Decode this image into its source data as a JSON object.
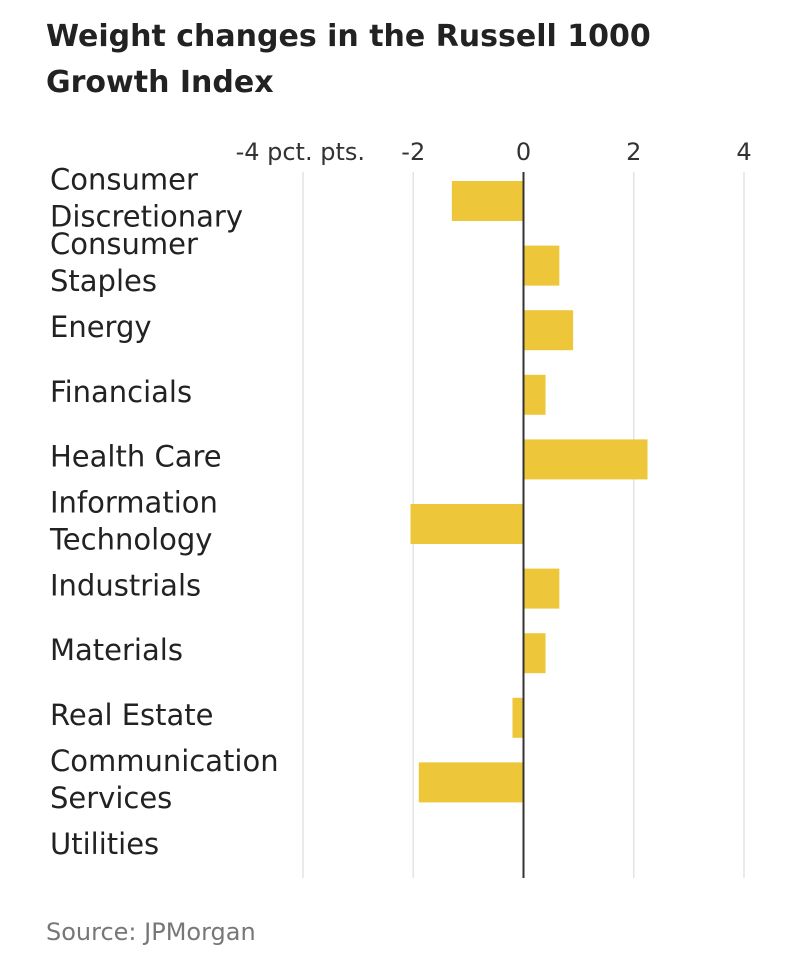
{
  "title": "Weight changes in the Russell 1000 Growth Index",
  "source": "Source: JPMorgan",
  "colors": {
    "bar": "#eec639",
    "grid": "#e3e3e3",
    "zero_line": "#333333",
    "text": "#222222",
    "tick_text": "#333333"
  },
  "chart_data": {
    "type": "bar",
    "orientation": "horizontal",
    "categories": [
      [
        "Consumer",
        "Discretionary"
      ],
      [
        "Consumer",
        "Staples"
      ],
      [
        "Energy"
      ],
      [
        "Financials"
      ],
      [
        "Health Care"
      ],
      [
        "Information",
        "Technology"
      ],
      [
        "Industrials"
      ],
      [
        "Materials"
      ],
      [
        "Real Estate"
      ],
      [
        "Communication",
        "Services"
      ],
      [
        "Utilities"
      ]
    ],
    "values": [
      -1.3,
      0.65,
      0.9,
      0.4,
      2.25,
      -2.05,
      0.65,
      0.4,
      -0.2,
      -1.9,
      0
    ],
    "xlim": [
      -4,
      4
    ],
    "ticks": [
      {
        "value": -4,
        "label": "-4 pct. pts."
      },
      {
        "value": -2,
        "label": "-2"
      },
      {
        "value": 0,
        "label": "0"
      },
      {
        "value": 2,
        "label": "2"
      },
      {
        "value": 4,
        "label": "4"
      }
    ],
    "grid": true,
    "legend": "none"
  }
}
